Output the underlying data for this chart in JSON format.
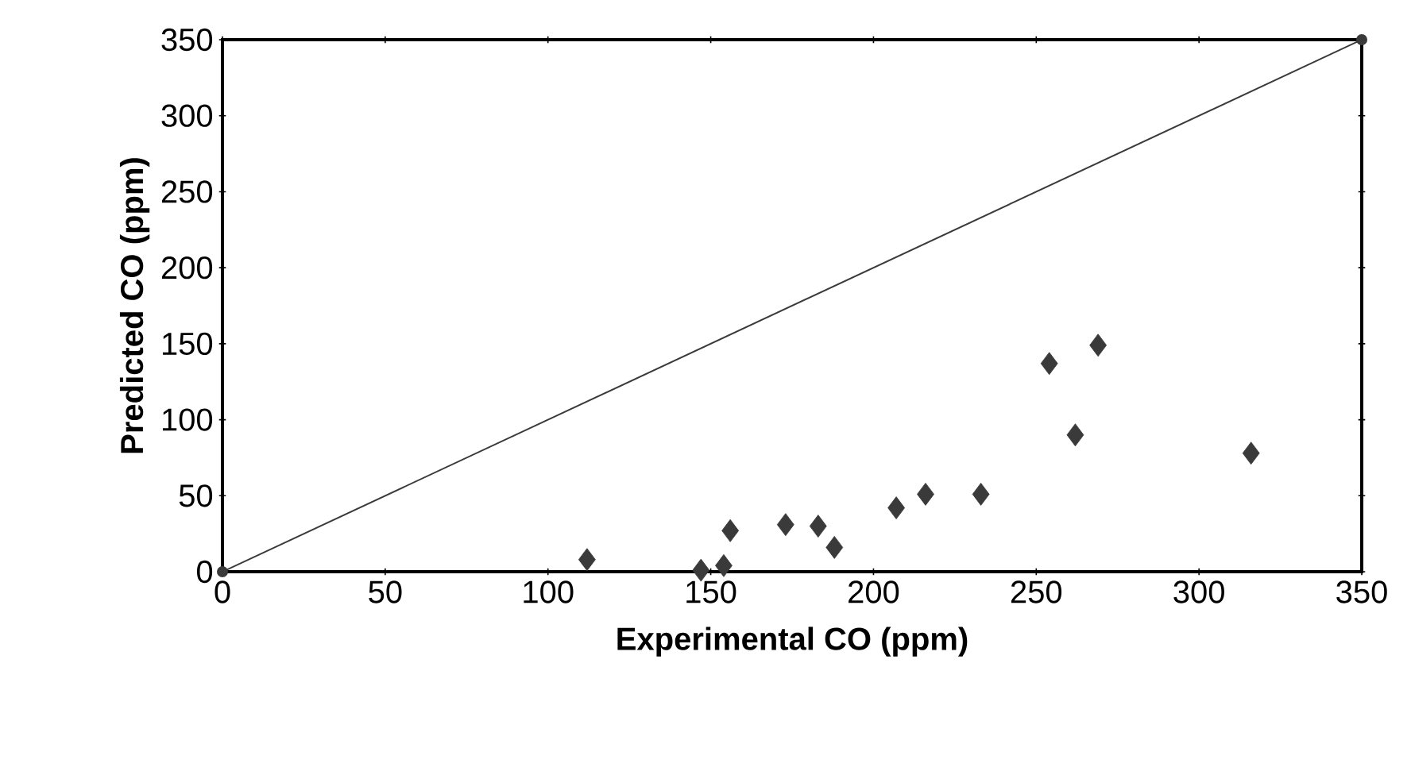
{
  "chart_data": {
    "type": "scatter",
    "xlabel": "Experimental  CO  (ppm)",
    "ylabel": "Predicted CO  (ppm)",
    "xlim": [
      0,
      350
    ],
    "ylim": [
      0,
      350
    ],
    "xticks": [
      0,
      50,
      100,
      150,
      200,
      250,
      300,
      350
    ],
    "yticks": [
      0,
      50,
      100,
      150,
      200,
      250,
      300,
      350
    ],
    "marker": "diamond",
    "series": [
      {
        "color": "#3a3a3a",
        "x": [
          112,
          147,
          154,
          156,
          173,
          183,
          188,
          207,
          216,
          233,
          254,
          262,
          269,
          316
        ],
        "values": [
          8,
          1,
          4,
          27,
          31,
          30,
          16,
          42,
          51,
          51,
          137,
          90,
          149,
          78
        ]
      },
      {
        "type": "line",
        "marker": "circle",
        "color": "#3a3a3a",
        "x": [
          0,
          350
        ],
        "values": [
          0,
          350
        ]
      }
    ]
  }
}
